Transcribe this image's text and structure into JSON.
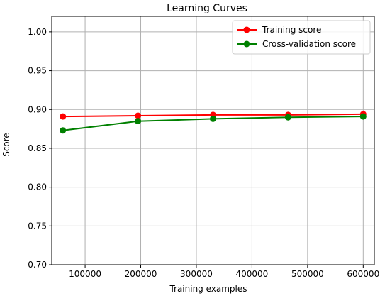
{
  "chart_data": {
    "type": "line",
    "title": "Learning Curves",
    "xlabel": "Training examples",
    "ylabel": "Score",
    "xlim": [
      40000,
      620000
    ],
    "ylim": [
      0.7,
      1.02
    ],
    "xticks": [
      100000,
      200000,
      300000,
      400000,
      500000,
      600000
    ],
    "xtick_labels": [
      "100000",
      "200000",
      "300000",
      "400000",
      "500000",
      "600000"
    ],
    "yticks": [
      0.7,
      0.75,
      0.8,
      0.85,
      0.9,
      0.95,
      1.0
    ],
    "ytick_labels": [
      "0.70",
      "0.75",
      "0.80",
      "0.85",
      "0.90",
      "0.95",
      "1.00"
    ],
    "grid": true,
    "legend_position": "top-right",
    "x": [
      60000,
      195000,
      330000,
      465000,
      600000
    ],
    "series": [
      {
        "name": "Training score",
        "color": "#ff0000",
        "values": [
          0.891,
          0.892,
          0.893,
          0.893,
          0.894
        ]
      },
      {
        "name": "Cross-validation score",
        "color": "#008000",
        "values": [
          0.873,
          0.885,
          0.888,
          0.89,
          0.891
        ]
      }
    ]
  }
}
